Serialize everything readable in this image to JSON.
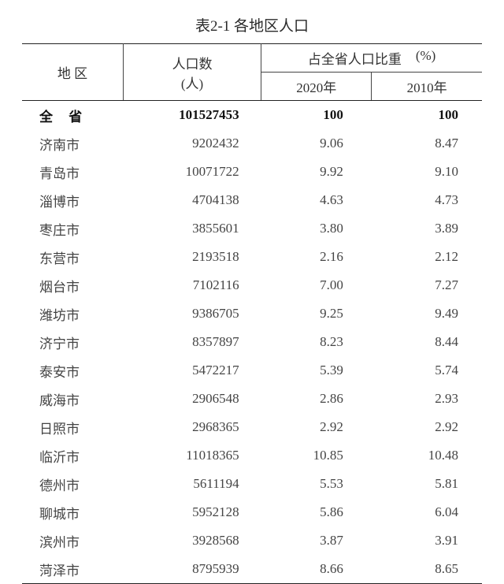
{
  "title": "表2-1  各地区人口",
  "headers": {
    "region": "地  区",
    "population": "人口数",
    "population_unit": "(人)",
    "pct_label": "占全省人口比重",
    "pct_unit": "(%)",
    "year_2020": "2020年",
    "year_2010": "2010年"
  },
  "total": {
    "region": "全 省",
    "population": "101527453",
    "pct_2020": "100",
    "pct_2010": "100"
  },
  "rows": [
    {
      "region": "济南市",
      "population": "9202432",
      "pct_2020": "9.06",
      "pct_2010": "8.47"
    },
    {
      "region": "青岛市",
      "population": "10071722",
      "pct_2020": "9.92",
      "pct_2010": "9.10"
    },
    {
      "region": "淄博市",
      "population": "4704138",
      "pct_2020": "4.63",
      "pct_2010": "4.73"
    },
    {
      "region": "枣庄市",
      "population": "3855601",
      "pct_2020": "3.80",
      "pct_2010": "3.89"
    },
    {
      "region": "东营市",
      "population": "2193518",
      "pct_2020": "2.16",
      "pct_2010": "2.12"
    },
    {
      "region": "烟台市",
      "population": "7102116",
      "pct_2020": "7.00",
      "pct_2010": "7.27"
    },
    {
      "region": "潍坊市",
      "population": "9386705",
      "pct_2020": "9.25",
      "pct_2010": "9.49"
    },
    {
      "region": "济宁市",
      "population": "8357897",
      "pct_2020": "8.23",
      "pct_2010": "8.44"
    },
    {
      "region": "泰安市",
      "population": "5472217",
      "pct_2020": "5.39",
      "pct_2010": "5.74"
    },
    {
      "region": "威海市",
      "population": "2906548",
      "pct_2020": "2.86",
      "pct_2010": "2.93"
    },
    {
      "region": "日照市",
      "population": "2968365",
      "pct_2020": "2.92",
      "pct_2010": "2.92"
    },
    {
      "region": "临沂市",
      "population": "11018365",
      "pct_2020": "10.85",
      "pct_2010": "10.48"
    },
    {
      "region": "德州市",
      "population": "5611194",
      "pct_2020": "5.53",
      "pct_2010": "5.81"
    },
    {
      "region": "聊城市",
      "population": "5952128",
      "pct_2020": "5.86",
      "pct_2010": "6.04"
    },
    {
      "region": "滨州市",
      "population": "3928568",
      "pct_2020": "3.87",
      "pct_2010": "3.91"
    },
    {
      "region": "菏泽市",
      "population": "8795939",
      "pct_2020": "8.66",
      "pct_2010": "8.65"
    }
  ],
  "style": {
    "border_color": "#222222",
    "text_color": "#444444",
    "bold_color": "#111111",
    "background": "#ffffff",
    "font_family": "SimSun",
    "title_fontsize": 19,
    "body_fontsize": 17
  }
}
